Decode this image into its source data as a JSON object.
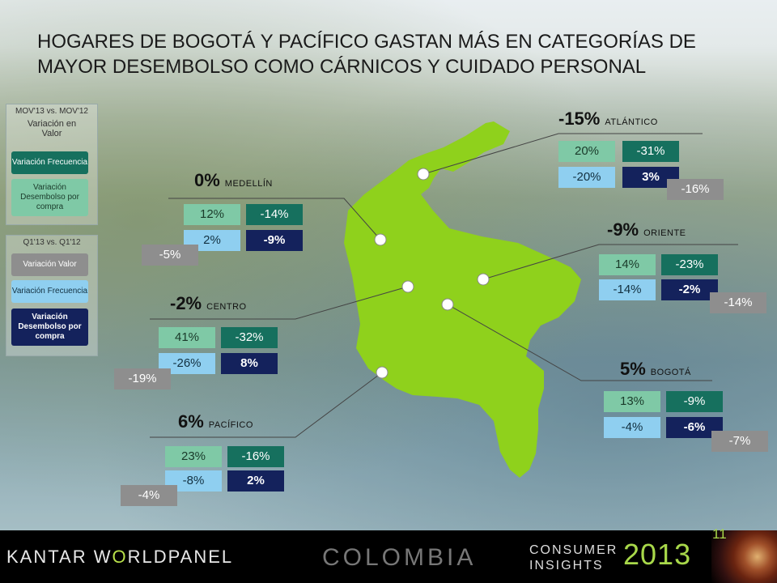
{
  "title": "HOGARES DE BOGOTÁ Y PACÍFICO GASTAN MÁS EN CATEGORÍAS DE MAYOR DESEMBOLSO COMO CÁRNICOS Y CUIDADO PERSONAL",
  "legend_top": {
    "period": "MOV'13 vs. MOV'12",
    "variation_value": "Variación en Valor",
    "frequency": "Variación Frecuencia",
    "spend": "Variación Desembolso por compra"
  },
  "legend_bottom": {
    "period": "Q1'13 vs. Q1'12",
    "value": "Variación Valor",
    "frequency": "Variación Frecuencia",
    "spend": "Variación Desembolso por compra"
  },
  "regions": {
    "atlantico": {
      "total": "-15%",
      "name": "ATLÁNTICO",
      "freq_mov": "20%",
      "freq_q": "-31%",
      "spend_mov": "-20%",
      "spend_q": "3%",
      "value_q": "-16%"
    },
    "medellin": {
      "total": "0%",
      "name": "MEDELLÍN",
      "freq_mov": "12%",
      "freq_q": "-14%",
      "spend_mov": "2%",
      "spend_q": "-9%",
      "value_q": "-5%"
    },
    "oriente": {
      "total": "-9%",
      "name": "ORIENTE",
      "freq_mov": "14%",
      "freq_q": "-23%",
      "spend_mov": "-14%",
      "spend_q": "-2%",
      "value_q": "-14%"
    },
    "centro": {
      "total": "-2%",
      "name": "CENTRO",
      "freq_mov": "41%",
      "freq_q": "-32%",
      "spend_mov": "-26%",
      "spend_q": "8%",
      "value_q": "-19%"
    },
    "bogota": {
      "total": "5%",
      "name": "BOGOTÁ",
      "freq_mov": "13%",
      "freq_q": "-9%",
      "spend_mov": "-4%",
      "spend_q": "-6%",
      "value_q": "-7%"
    },
    "pacifico": {
      "total": "6%",
      "name": "PACÍFICO",
      "freq_mov": "23%",
      "freq_q": "-16%",
      "spend_mov": "-8%",
      "spend_q": "2%",
      "value_q": "-4%"
    }
  },
  "footer": {
    "brand_part1": "KANTAR W",
    "brand_part2": "O",
    "brand_part3": "RLDPANEL",
    "country": "COLOMBIA",
    "consumer": "CONSUMER",
    "insights": "INSIGHTS",
    "year": "2013",
    "page": "11"
  },
  "colors": {
    "map_fill": "#8fd11c",
    "freq_mov": "#7fc9a6",
    "freq_q": "#16705e",
    "spend_mov": "#8fcff0",
    "spend_q": "#14225c",
    "value_q": "#8e8e8e",
    "footer_accent": "#a8d84a"
  }
}
